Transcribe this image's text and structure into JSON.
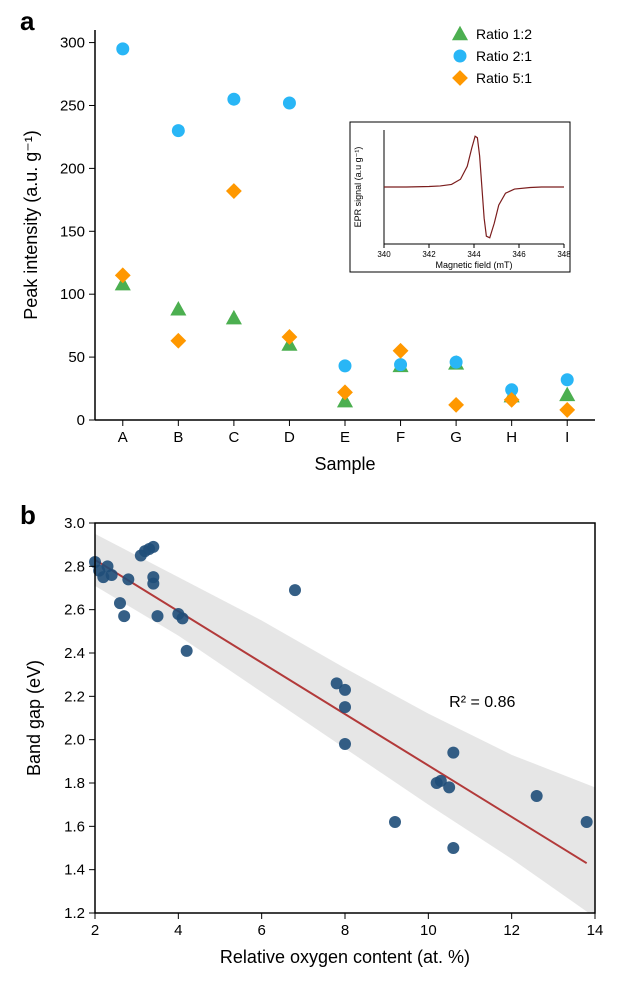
{
  "panelA": {
    "label": "a",
    "label_fontsize": 26,
    "type": "scatter",
    "x_categories": [
      "A",
      "B",
      "C",
      "D",
      "E",
      "F",
      "G",
      "H",
      "I"
    ],
    "xlabel": "Sample",
    "ylabel": "Peak intensity  (a.u. g⁻¹)",
    "ylim": [
      0,
      310
    ],
    "ytick_step": 50,
    "yticks": [
      0,
      50,
      100,
      150,
      200,
      250,
      300
    ],
    "axis_fontsize": 18,
    "tick_fontsize": 15,
    "series": [
      {
        "name": "Ratio 1:2",
        "marker": "triangle",
        "color": "#4caf50",
        "values": [
          108,
          88,
          81,
          60,
          15,
          43,
          45,
          19,
          20
        ]
      },
      {
        "name": "Ratio 2:1",
        "marker": "circle",
        "color": "#29b6f6",
        "values": [
          295,
          230,
          255,
          252,
          43,
          44,
          46,
          24,
          32
        ]
      },
      {
        "name": "Ratio 5:1",
        "marker": "diamond",
        "color": "#ff9800",
        "values": [
          115,
          63,
          182,
          66,
          22,
          55,
          12,
          16,
          8
        ]
      }
    ],
    "legend_position": "top-right",
    "inset": {
      "type": "line",
      "xlabel": "Magnetic field (mT)",
      "ylabel": "EPR signal (a.u g⁻¹)",
      "xlim": [
        340,
        348
      ],
      "xtick_step": 2,
      "xticks": [
        340,
        342,
        344,
        346,
        348
      ],
      "line_color": "#7b1d1d",
      "line_width": 1.2,
      "axis_fontsize": 9,
      "tick_fontsize": 8,
      "points": [
        [
          340.0,
          0.0
        ],
        [
          341.0,
          0.0
        ],
        [
          342.0,
          0.01
        ],
        [
          342.5,
          0.02
        ],
        [
          343.0,
          0.05
        ],
        [
          343.4,
          0.15
        ],
        [
          343.7,
          0.4
        ],
        [
          343.9,
          0.75
        ],
        [
          344.05,
          0.98
        ],
        [
          344.15,
          0.95
        ],
        [
          344.25,
          0.6
        ],
        [
          344.35,
          0.0
        ],
        [
          344.45,
          -0.6
        ],
        [
          344.55,
          -0.95
        ],
        [
          344.7,
          -0.98
        ],
        [
          344.9,
          -0.7
        ],
        [
          345.1,
          -0.35
        ],
        [
          345.4,
          -0.12
        ],
        [
          345.8,
          -0.04
        ],
        [
          346.5,
          -0.01
        ],
        [
          347.0,
          0.0
        ],
        [
          348.0,
          0.0
        ]
      ]
    }
  },
  "panelB": {
    "label": "b",
    "label_fontsize": 26,
    "type": "scatter-with-fit",
    "xlabel": "Relative oxygen content (at. %)",
    "ylabel": "Band gap (eV)",
    "xlim": [
      2,
      14
    ],
    "ylim": [
      1.2,
      3.0
    ],
    "xtick_step": 2,
    "ytick_step": 0.2,
    "xticks": [
      2,
      4,
      6,
      8,
      10,
      12,
      14
    ],
    "yticks": [
      1.2,
      1.4,
      1.6,
      1.8,
      2.0,
      2.2,
      2.4,
      2.6,
      2.8,
      3.0
    ],
    "axis_fontsize": 18,
    "tick_fontsize": 15,
    "marker_color": "#1f4e79",
    "marker_size": 6,
    "points": [
      [
        2.0,
        2.82
      ],
      [
        2.1,
        2.78
      ],
      [
        2.2,
        2.75
      ],
      [
        2.3,
        2.8
      ],
      [
        2.4,
        2.76
      ],
      [
        2.6,
        2.63
      ],
      [
        2.7,
        2.57
      ],
      [
        2.8,
        2.74
      ],
      [
        3.1,
        2.85
      ],
      [
        3.2,
        2.87
      ],
      [
        3.3,
        2.88
      ],
      [
        3.4,
        2.89
      ],
      [
        3.4,
        2.72
      ],
      [
        3.4,
        2.75
      ],
      [
        3.5,
        2.57
      ],
      [
        4.0,
        2.58
      ],
      [
        4.1,
        2.56
      ],
      [
        4.2,
        2.41
      ],
      [
        6.8,
        2.69
      ],
      [
        7.8,
        2.26
      ],
      [
        8.0,
        2.23
      ],
      [
        8.0,
        2.15
      ],
      [
        8.0,
        1.98
      ],
      [
        9.2,
        1.62
      ],
      [
        10.2,
        1.8
      ],
      [
        10.3,
        1.81
      ],
      [
        10.5,
        1.78
      ],
      [
        10.6,
        1.94
      ],
      [
        10.6,
        1.5
      ],
      [
        12.6,
        1.74
      ],
      [
        13.8,
        1.62
      ]
    ],
    "fit_line": {
      "x1": 2.0,
      "y1": 2.83,
      "x2": 13.8,
      "y2": 1.43,
      "color": "#b23a3a",
      "width": 2
    },
    "ci_band": {
      "color": "#d9d9d9",
      "opacity": 0.65,
      "upper": [
        [
          2.0,
          2.95
        ],
        [
          4.0,
          2.75
        ],
        [
          6.0,
          2.55
        ],
        [
          8.0,
          2.33
        ],
        [
          10.0,
          2.12
        ],
        [
          12.0,
          1.93
        ],
        [
          14.0,
          1.78
        ]
      ],
      "lower": [
        [
          2.0,
          2.71
        ],
        [
          4.0,
          2.48
        ],
        [
          6.0,
          2.22
        ],
        [
          8.0,
          1.96
        ],
        [
          10.0,
          1.7
        ],
        [
          12.0,
          1.45
        ],
        [
          14.0,
          1.18
        ]
      ]
    },
    "r2_label": "R² = 0.86",
    "r2_pos": [
      10.5,
      2.15
    ]
  },
  "global": {
    "background_color": "#ffffff",
    "axis_color": "#000000",
    "tick_length": 6
  }
}
